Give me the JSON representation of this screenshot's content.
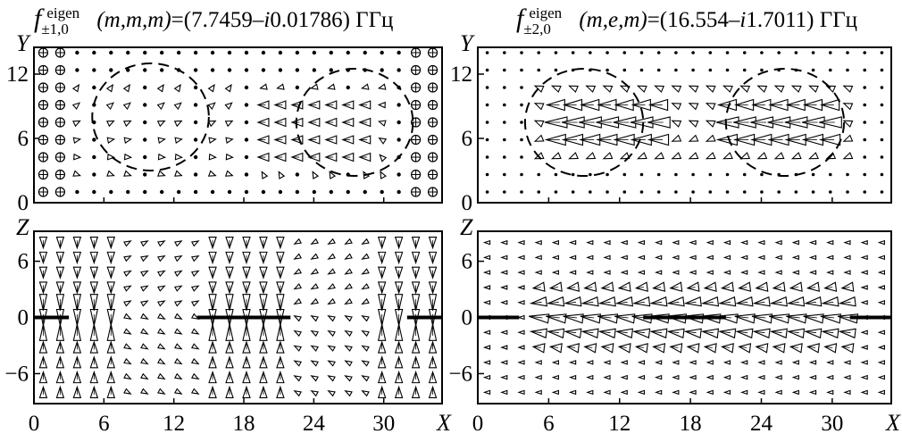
{
  "panels": [
    {
      "id": "top-left",
      "title": {
        "f": "f",
        "sup": "eigen",
        "sub": "±1,0",
        "args": "(m,m,m)",
        "value": "=(7.7459–",
        "imag": "i",
        "value2": "0.01786) ГГц"
      },
      "plane": "XY",
      "ylabel": "Y",
      "yticks": [
        "0",
        "6",
        "12"
      ],
      "ylim": [
        0,
        14.5
      ],
      "xlim": [
        0,
        35
      ],
      "pattern": "xy-magnetic-m",
      "circles": [
        {
          "cx": 10,
          "cy": 8,
          "r": 5
        },
        {
          "cx": 27.5,
          "cy": 7.5,
          "r": 5
        }
      ]
    },
    {
      "id": "top-right",
      "title": {
        "f": "f",
        "sup": "eigen",
        "sub": "±2,0",
        "args": "(m,e,m)",
        "value": "=(16.554–",
        "imag": "i",
        "value2": "1.7011) ГГц"
      },
      "plane": "XY",
      "ylabel": "Y",
      "yticks": [
        "0",
        "6",
        "12"
      ],
      "ylim": [
        0,
        14.5
      ],
      "xlim": [
        0,
        35
      ],
      "pattern": "xy-electric-e",
      "circles": [
        {
          "cx": 9,
          "cy": 7.5,
          "r": 5
        },
        {
          "cx": 26,
          "cy": 7.5,
          "r": 5
        }
      ]
    },
    {
      "id": "bottom-left",
      "plane": "XZ",
      "ylabel": "Z",
      "yticks": [
        "−6",
        "0",
        "6"
      ],
      "ylim": [
        -9.2,
        9.2
      ],
      "xlim": [
        0,
        35
      ],
      "pattern": "xz-vertical",
      "strips": [
        [
          0,
          3
        ],
        [
          14,
          22
        ],
        [
          32,
          35
        ]
      ]
    },
    {
      "id": "bottom-right",
      "plane": "XZ",
      "ylabel": "Z",
      "yticks": [
        "−6",
        "0",
        "6"
      ],
      "ylim": [
        -9.2,
        9.2
      ],
      "xlim": [
        0,
        35
      ],
      "pattern": "xz-horizontal",
      "strips": [
        [
          0,
          3.5
        ],
        [
          14,
          21
        ],
        [
          31.5,
          35
        ]
      ]
    }
  ],
  "xaxis": {
    "label": "X",
    "ticks": [
      "0",
      "6",
      "12",
      "18",
      "24",
      "30"
    ],
    "tick_values": [
      0,
      6,
      12,
      18,
      24,
      30
    ]
  },
  "colors": {
    "ink": "#000000",
    "background": "#ffffff"
  }
}
